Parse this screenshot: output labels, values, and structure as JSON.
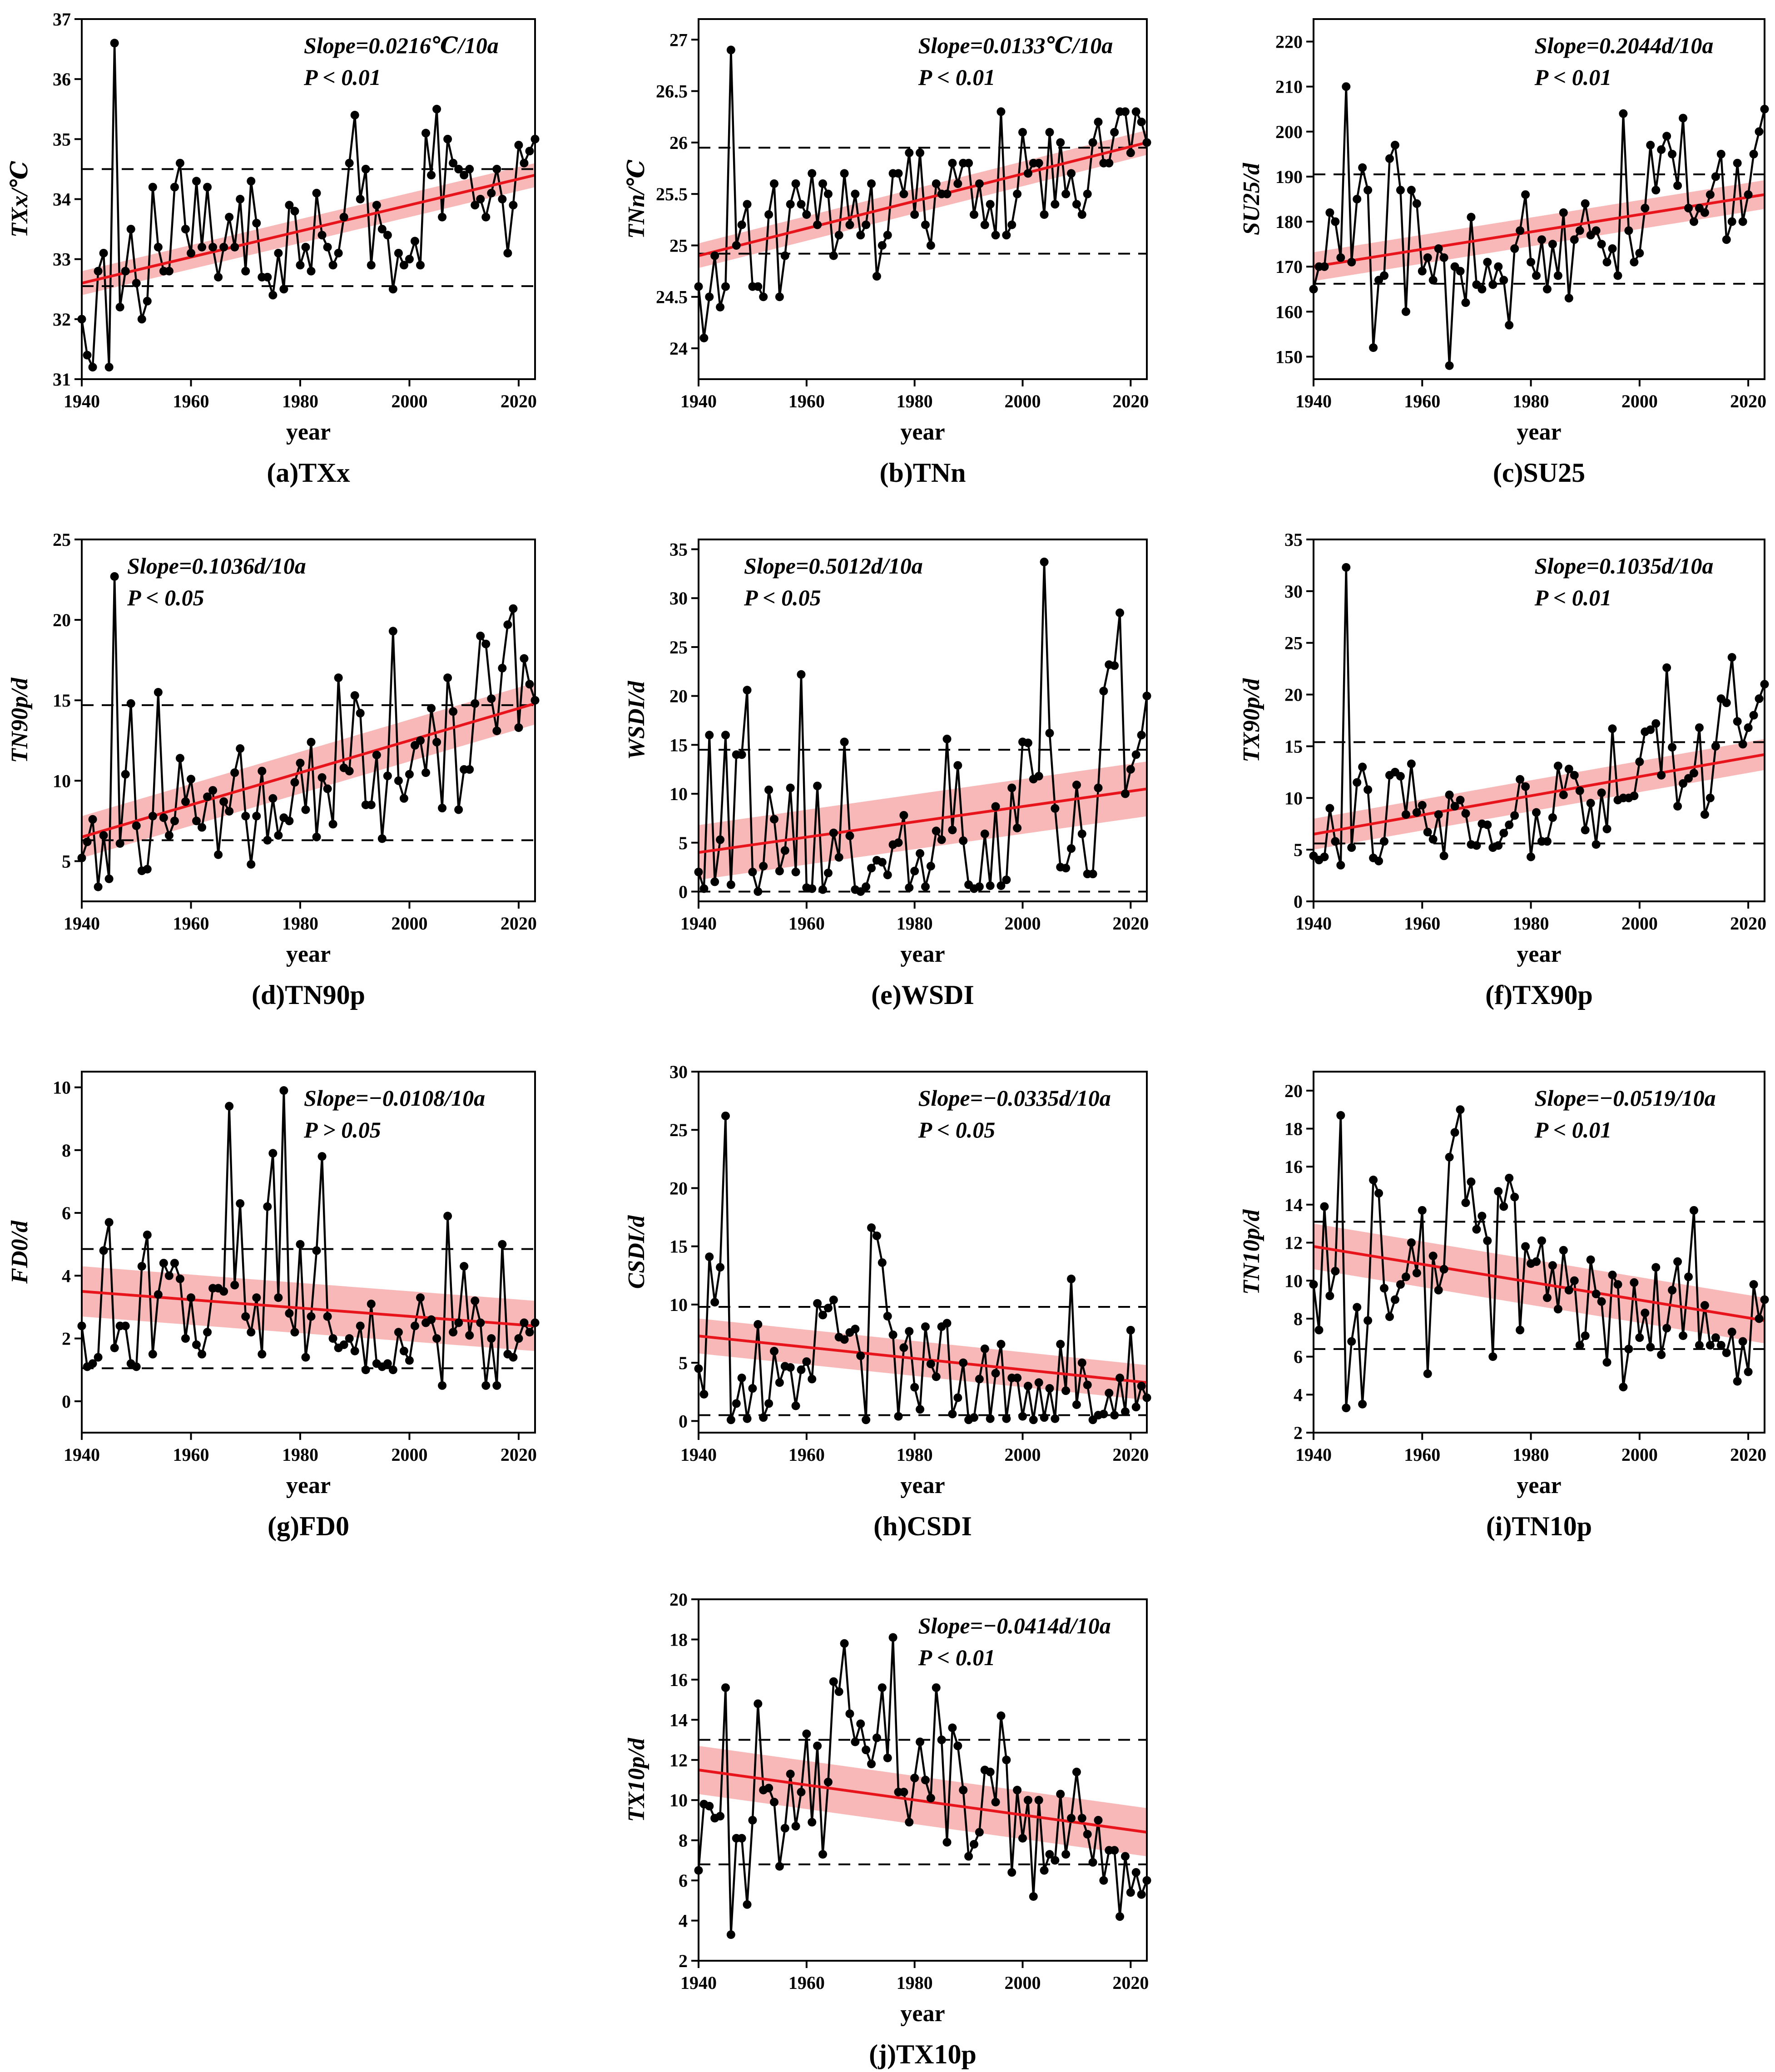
{
  "colors": {
    "series": "#000000",
    "trend": "#e8141c",
    "band": "#f5a0a0",
    "threshold": "#000000"
  },
  "chart_data": [
    {
      "type": "line",
      "title": "(a)TXx",
      "ylabel": "TXx/℃",
      "xlabel": "year",
      "xlim": [
        1940,
        2023
      ],
      "ylim": [
        31,
        37
      ],
      "yticks": [
        31,
        32,
        33,
        34,
        35,
        36,
        37
      ],
      "xticks": [
        1940,
        1960,
        1980,
        2000,
        2020
      ],
      "slope_text": "Slope=0.0216℃/10a",
      "p_text": "P < 0.01",
      "annotation_position": "top-right",
      "thresholds": [
        34.5,
        32.55
      ],
      "trend": [
        32.6,
        34.4
      ],
      "band": 0.2,
      "values": [
        32.0,
        31.4,
        31.2,
        32.8,
        33.1,
        31.2,
        36.6,
        32.2,
        32.8,
        33.5,
        32.6,
        32.0,
        32.3,
        34.2,
        33.2,
        32.8,
        32.8,
        34.2,
        34.6,
        33.5,
        33.1,
        34.3,
        33.2,
        34.2,
        33.2,
        32.7,
        33.2,
        33.7,
        33.2,
        34.0,
        32.8,
        34.3,
        33.6,
        32.7,
        32.7,
        32.4,
        33.1,
        32.5,
        33.9,
        33.8,
        32.9,
        33.2,
        32.8,
        34.1,
        33.4,
        33.2,
        32.9,
        33.1,
        33.7,
        34.6,
        35.4,
        34.0,
        34.5,
        32.9,
        33.9,
        33.5,
        33.4,
        32.5,
        33.1,
        32.9,
        33.0,
        33.3,
        32.9,
        35.1,
        34.4,
        35.5,
        33.7,
        35.0,
        34.6,
        34.5,
        34.4,
        34.5,
        33.9,
        34.0,
        33.7,
        34.1,
        34.5,
        34.0,
        33.1,
        33.9,
        34.9,
        34.6,
        34.8,
        35.0
      ]
    },
    {
      "type": "line",
      "title": "(b)TNn",
      "ylabel": "TNn/℃",
      "xlabel": "year",
      "xlim": [
        1940,
        2023
      ],
      "ylim": [
        23.7,
        27.2
      ],
      "yticks": [
        24.0,
        24.5,
        25.0,
        25.5,
        26.0,
        26.5,
        27.0
      ],
      "xticks": [
        1940,
        1960,
        1980,
        2000,
        2020
      ],
      "slope_text": "Slope=0.0133℃/10a",
      "p_text": "P < 0.01",
      "annotation_position": "top-right",
      "thresholds": [
        25.95,
        24.92
      ],
      "trend": [
        24.9,
        26.0
      ],
      "band": 0.12,
      "values": [
        24.6,
        24.1,
        24.5,
        24.9,
        24.4,
        24.6,
        26.9,
        25.0,
        25.2,
        25.4,
        24.6,
        24.6,
        24.5,
        25.3,
        25.6,
        24.5,
        24.9,
        25.4,
        25.6,
        25.4,
        25.3,
        25.7,
        25.2,
        25.6,
        25.5,
        24.9,
        25.1,
        25.7,
        25.2,
        25.5,
        25.1,
        25.2,
        25.6,
        24.7,
        25.0,
        25.1,
        25.7,
        25.7,
        25.5,
        25.9,
        25.3,
        25.9,
        25.2,
        25.0,
        25.6,
        25.5,
        25.5,
        25.8,
        25.6,
        25.8,
        25.8,
        25.3,
        25.6,
        25.2,
        25.4,
        25.1,
        26.3,
        25.1,
        25.2,
        25.5,
        26.1,
        25.7,
        25.8,
        25.8,
        25.3,
        26.1,
        25.4,
        26.0,
        25.5,
        25.7,
        25.4,
        25.3,
        25.5,
        26.0,
        26.2,
        25.8,
        25.8,
        26.1,
        26.3,
        26.3,
        25.9,
        26.3,
        26.2,
        26.0
      ]
    },
    {
      "type": "line",
      "title": "(c)SU25",
      "ylabel": "SU25/d",
      "xlabel": "year",
      "xlim": [
        1940,
        2023
      ],
      "ylim": [
        145,
        225
      ],
      "yticks": [
        150,
        160,
        170,
        180,
        190,
        200,
        210,
        220
      ],
      "xticks": [
        1940,
        1960,
        1980,
        2000,
        2020
      ],
      "slope_text": "Slope=0.2044d/10a",
      "p_text": "P < 0.01",
      "annotation_position": "top-right",
      "thresholds": [
        190.5,
        166.2
      ],
      "trend": [
        170.0,
        186.0
      ],
      "band": 3.2,
      "values": [
        165,
        170,
        170,
        182,
        180,
        172,
        210,
        171,
        185,
        192,
        187,
        152,
        167,
        168,
        194,
        197,
        187,
        160,
        187,
        184,
        169,
        172,
        167,
        174,
        172,
        148,
        170,
        169,
        162,
        181,
        166,
        165,
        171,
        166,
        170,
        167,
        157,
        174,
        178,
        186,
        171,
        168,
        176,
        165,
        175,
        168,
        182,
        163,
        176,
        178,
        184,
        177,
        178,
        175,
        171,
        174,
        168,
        204,
        178,
        171,
        173,
        183,
        197,
        187,
        196,
        199,
        195,
        188,
        203,
        183,
        180,
        183,
        182,
        186,
        190,
        195,
        176,
        180,
        193,
        180,
        186,
        195,
        200,
        205
      ]
    },
    {
      "type": "line",
      "title": "(d)TN90p",
      "ylabel": "TN90p/d",
      "xlabel": "year",
      "xlim": [
        1940,
        2023
      ],
      "ylim": [
        2.5,
        25
      ],
      "yticks": [
        5,
        10,
        15,
        20,
        25
      ],
      "xticks": [
        1940,
        1960,
        1980,
        2000,
        2020
      ],
      "slope_text": "Slope=0.1036d/10a",
      "p_text": "P < 0.05",
      "annotation_position": "top-left",
      "thresholds": [
        14.7,
        6.3
      ],
      "trend": [
        6.5,
        14.8
      ],
      "band": 1.3,
      "values": [
        5.2,
        6.2,
        7.6,
        3.4,
        6.6,
        3.9,
        22.7,
        6.1,
        10.4,
        14.8,
        7.2,
        4.4,
        4.5,
        7.8,
        15.5,
        7.7,
        6.6,
        7.5,
        11.4,
        8.7,
        10.1,
        7.5,
        7.1,
        9.0,
        9.4,
        5.4,
        8.7,
        8.1,
        10.5,
        12.0,
        7.8,
        4.8,
        7.8,
        10.6,
        6.3,
        8.9,
        6.6,
        7.7,
        7.5,
        9.9,
        11.1,
        8.2,
        12.4,
        6.5,
        10.2,
        9.5,
        7.3,
        16.4,
        10.8,
        10.6,
        15.3,
        14.2,
        8.5,
        8.5,
        11.6,
        6.4,
        10.3,
        19.3,
        10.0,
        8.9,
        10.4,
        12.2,
        12.5,
        10.5,
        14.5,
        12.4,
        8.3,
        16.4,
        14.3,
        8.2,
        10.7,
        10.7,
        14.8,
        19.0,
        18.5,
        15.1,
        13.1,
        17.0,
        19.7,
        20.7,
        13.3,
        17.6,
        16.0,
        15.0
      ]
    },
    {
      "type": "line",
      "title": "(e)WSDI",
      "ylabel": "WSDI/d",
      "xlabel": "year",
      "xlim": [
        1940,
        2023
      ],
      "ylim": [
        -1,
        36
      ],
      "yticks": [
        0,
        5,
        10,
        15,
        20,
        25,
        30,
        35
      ],
      "xticks": [
        1940,
        1960,
        1980,
        2000,
        2020
      ],
      "slope_text": "Slope=0.5012d/10a",
      "p_text": "P < 0.05",
      "annotation_position": "top-left",
      "thresholds": [
        14.5,
        0.0
      ],
      "trend": [
        4.0,
        10.5
      ],
      "band": 2.8,
      "values": [
        2.0,
        0.3,
        16.0,
        1.0,
        5.3,
        16.0,
        0.7,
        14.0,
        14.0,
        20.6,
        2.0,
        0.0,
        2.6,
        10.4,
        7.4,
        2.1,
        4.2,
        10.6,
        2.0,
        22.2,
        0.4,
        0.3,
        10.8,
        0.2,
        1.9,
        6.0,
        3.5,
        15.3,
        5.7,
        0.2,
        0.0,
        0.5,
        2.4,
        3.2,
        3.0,
        1.7,
        4.8,
        5.0,
        7.8,
        0.4,
        2.1,
        3.9,
        0.5,
        2.6,
        6.2,
        5.3,
        15.6,
        6.3,
        12.9,
        5.2,
        0.7,
        0.3,
        0.5,
        5.9,
        0.6,
        8.7,
        0.6,
        1.2,
        10.6,
        6.5,
        15.3,
        15.2,
        11.5,
        11.8,
        33.7,
        16.2,
        8.5,
        2.5,
        2.4,
        4.4,
        10.9,
        5.9,
        1.8,
        1.8,
        10.6,
        20.5,
        23.2,
        23.1,
        28.5,
        10.0,
        12.5,
        14.0,
        16.0,
        20.0
      ]
    },
    {
      "type": "line",
      "title": "(f)TX90p",
      "ylabel": "TX90p/d",
      "xlabel": "year",
      "xlim": [
        1940,
        2023
      ],
      "ylim": [
        0,
        35
      ],
      "yticks": [
        0,
        5,
        10,
        15,
        20,
        25,
        30,
        35
      ],
      "xticks": [
        1940,
        1960,
        1980,
        2000,
        2020
      ],
      "slope_text": "Slope=0.1035d/10a",
      "p_text": "P < 0.01",
      "annotation_position": "top-right",
      "thresholds": [
        15.4,
        5.6
      ],
      "trend": [
        6.5,
        14.2
      ],
      "band": 1.5,
      "values": [
        4.4,
        4.0,
        4.3,
        9.0,
        5.8,
        3.5,
        32.3,
        5.2,
        11.5,
        13.0,
        10.8,
        4.2,
        3.9,
        5.8,
        12.2,
        12.5,
        12.1,
        8.4,
        13.3,
        8.6,
        9.3,
        6.7,
        6.0,
        8.4,
        4.4,
        10.3,
        9.2,
        9.8,
        8.5,
        5.5,
        5.4,
        7.5,
        7.4,
        5.2,
        5.4,
        6.6,
        7.4,
        8.3,
        11.8,
        11.1,
        4.3,
        8.6,
        5.8,
        5.8,
        8.1,
        13.1,
        10.3,
        12.8,
        12.2,
        10.7,
        6.9,
        9.5,
        5.5,
        10.5,
        7.0,
        16.7,
        9.8,
        10.0,
        10.0,
        10.2,
        13.5,
        16.4,
        16.6,
        17.2,
        12.2,
        22.6,
        14.9,
        9.2,
        11.4,
        11.9,
        12.4,
        16.8,
        8.4,
        10.0,
        15.0,
        19.6,
        19.2,
        23.6,
        17.4,
        15.2,
        16.8,
        18.0,
        19.6,
        21.0
      ]
    },
    {
      "type": "line",
      "title": "(g)FD0",
      "ylabel": "FD0/d",
      "xlabel": "year",
      "xlim": [
        1940,
        2023
      ],
      "ylim": [
        -1,
        10.5
      ],
      "yticks": [
        0,
        2,
        4,
        6,
        8,
        10
      ],
      "xticks": [
        1940,
        1960,
        1980,
        2000,
        2020
      ],
      "slope_text": "Slope=−0.0108/10a",
      "p_text": "P > 0.05",
      "annotation_position": "top-right",
      "thresholds": [
        4.85,
        1.05
      ],
      "trend": [
        3.5,
        2.4
      ],
      "band": 0.8,
      "values": [
        2.4,
        1.1,
        1.2,
        1.4,
        4.8,
        5.7,
        1.7,
        2.4,
        2.4,
        1.2,
        1.1,
        4.3,
        5.3,
        1.5,
        3.4,
        4.4,
        4.0,
        4.4,
        3.9,
        2.0,
        3.3,
        1.8,
        1.5,
        2.2,
        3.6,
        3.6,
        3.5,
        9.4,
        3.7,
        6.3,
        2.7,
        2.2,
        3.3,
        1.5,
        6.2,
        7.9,
        3.3,
        9.9,
        2.8,
        2.2,
        5.0,
        1.4,
        2.7,
        4.8,
        7.8,
        2.7,
        2.0,
        1.7,
        1.8,
        2.0,
        1.6,
        2.4,
        1.0,
        3.1,
        1.2,
        1.1,
        1.2,
        1.0,
        2.2,
        1.6,
        1.3,
        2.4,
        3.3,
        2.5,
        2.6,
        2.0,
        0.5,
        5.9,
        2.2,
        2.5,
        4.3,
        2.1,
        3.2,
        2.5,
        0.5,
        2.0,
        0.5,
        5.0,
        1.5,
        1.4,
        2.0,
        2.5,
        2.2,
        2.5
      ]
    },
    {
      "type": "line",
      "title": "(h)CSDI",
      "ylabel": "CSDI/d",
      "xlabel": "year",
      "xlim": [
        1940,
        2023
      ],
      "ylim": [
        -1,
        30
      ],
      "yticks": [
        0,
        5,
        10,
        15,
        20,
        25,
        30
      ],
      "xticks": [
        1940,
        1960,
        1980,
        2000,
        2020
      ],
      "slope_text": "Slope=−0.0335d/10a",
      "p_text": "P < 0.05",
      "annotation_position": "top-right",
      "thresholds": [
        9.8,
        0.5
      ],
      "trend": [
        7.3,
        3.3
      ],
      "band": 1.5,
      "values": [
        4.5,
        2.3,
        14.1,
        10.2,
        13.2,
        26.2,
        0.1,
        1.5,
        3.7,
        0.2,
        2.8,
        8.3,
        0.3,
        1.5,
        6.0,
        3.3,
        4.7,
        4.6,
        1.3,
        4.4,
        5.1,
        3.6,
        10.1,
        9.1,
        9.7,
        10.4,
        7.2,
        7.0,
        7.6,
        7.9,
        5.6,
        0.1,
        16.6,
        15.9,
        13.6,
        9.0,
        7.4,
        0.4,
        6.3,
        7.7,
        2.9,
        1.0,
        8.1,
        4.9,
        3.8,
        8.1,
        8.4,
        0.6,
        2.0,
        5.0,
        0.1,
        0.3,
        3.6,
        6.2,
        0.2,
        4.1,
        6.6,
        0.2,
        3.7,
        3.7,
        0.4,
        3.0,
        0.1,
        3.3,
        0.3,
        2.8,
        0.2,
        6.6,
        2.6,
        12.2,
        1.4,
        5.0,
        3.1,
        0.1,
        0.5,
        0.6,
        2.4,
        0.5,
        3.7,
        0.8,
        7.8,
        1.2,
        3.0,
        2.0
      ]
    },
    {
      "type": "line",
      "title": "(i)TN10p",
      "ylabel": "TN10p/d",
      "xlabel": "year",
      "xlim": [
        1940,
        2023
      ],
      "ylim": [
        2,
        21
      ],
      "yticks": [
        2,
        4,
        6,
        8,
        10,
        12,
        14,
        16,
        18,
        20
      ],
      "xticks": [
        1940,
        1960,
        1980,
        2000,
        2020
      ],
      "slope_text": "Slope=−0.0519/10a",
      "p_text": "P < 0.01",
      "annotation_position": "top-right",
      "thresholds": [
        13.1,
        6.4
      ],
      "trend": [
        11.8,
        7.9
      ],
      "band": 1.2,
      "values": [
        9.8,
        7.4,
        13.9,
        9.2,
        10.5,
        18.7,
        3.3,
        6.8,
        8.6,
        3.5,
        7.9,
        15.3,
        14.6,
        9.6,
        8.1,
        9.0,
        9.8,
        10.2,
        12.0,
        10.4,
        13.7,
        5.1,
        11.3,
        9.5,
        10.6,
        16.5,
        17.8,
        19.0,
        14.1,
        15.2,
        12.7,
        13.4,
        12.1,
        6.0,
        14.7,
        13.9,
        15.4,
        14.4,
        7.4,
        11.8,
        10.9,
        11.0,
        12.1,
        9.1,
        10.8,
        8.5,
        11.6,
        9.5,
        10.0,
        6.6,
        7.1,
        11.1,
        9.3,
        8.9,
        5.7,
        10.3,
        9.8,
        4.4,
        6.4,
        9.9,
        7.0,
        8.3,
        6.5,
        10.7,
        6.1,
        7.5,
        9.5,
        11.0,
        7.1,
        10.2,
        13.7,
        6.6,
        8.7,
        6.6,
        7.0,
        6.6,
        6.2,
        7.3,
        4.7,
        6.8,
        5.2,
        9.8,
        8.0,
        9.0
      ]
    },
    {
      "type": "line",
      "title": "(j)TX10p",
      "ylabel": "TX10p/d",
      "xlabel": "year",
      "xlim": [
        1940,
        2023
      ],
      "ylim": [
        2,
        20
      ],
      "yticks": [
        2,
        4,
        6,
        8,
        10,
        12,
        14,
        16,
        18,
        20
      ],
      "xticks": [
        1940,
        1960,
        1980,
        2000,
        2020
      ],
      "slope_text": "Slope=−0.0414d/10a",
      "p_text": "P < 0.01",
      "annotation_position": "top-right",
      "thresholds": [
        13.0,
        6.8
      ],
      "trend": [
        11.5,
        8.4
      ],
      "band": 1.2,
      "values": [
        6.5,
        9.8,
        9.7,
        9.1,
        9.2,
        15.6,
        3.3,
        8.1,
        8.1,
        4.8,
        9.0,
        14.8,
        10.5,
        10.6,
        9.9,
        6.7,
        8.6,
        11.3,
        8.7,
        10.4,
        13.3,
        8.9,
        12.7,
        7.3,
        10.9,
        15.9,
        15.4,
        17.8,
        14.3,
        12.9,
        13.8,
        12.5,
        11.8,
        13.1,
        15.6,
        12.1,
        18.1,
        10.4,
        10.4,
        8.9,
        11.1,
        12.9,
        11.0,
        10.1,
        15.6,
        13.0,
        7.9,
        13.6,
        12.7,
        10.5,
        7.2,
        7.8,
        8.4,
        11.5,
        11.4,
        9.9,
        14.2,
        12.0,
        6.4,
        10.5,
        8.1,
        10.0,
        5.2,
        10.0,
        6.5,
        7.3,
        7.0,
        10.3,
        7.3,
        9.1,
        11.4,
        9.1,
        8.3,
        6.9,
        9.0,
        6.0,
        7.5,
        7.5,
        4.2,
        7.2,
        5.4,
        6.4,
        5.3,
        6.0
      ]
    }
  ]
}
